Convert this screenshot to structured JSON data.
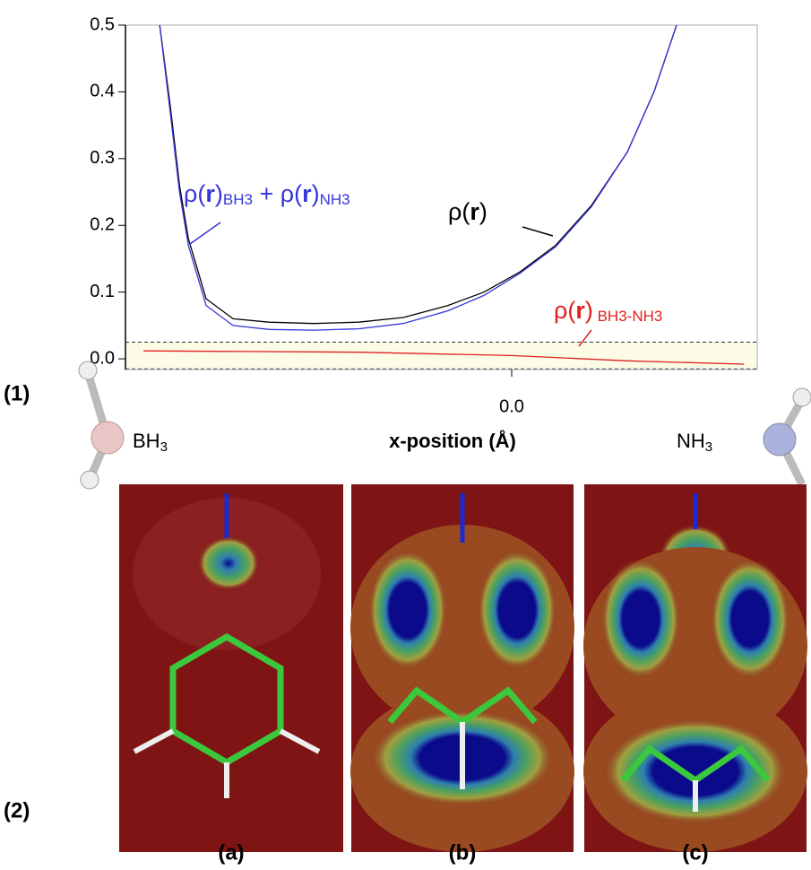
{
  "chart_data": {
    "type": "line",
    "x_label": "x-position (Å)",
    "xlim": [
      -0.958,
      0.609
    ],
    "xticks": [
      {
        "value": 0,
        "label": "0.0"
      }
    ],
    "ylim": [
      -0.016,
      0.5
    ],
    "yticks": [
      {
        "value": 0,
        "label": "0.0"
      },
      0.1,
      0.2,
      0.3,
      0.4,
      0.5
    ],
    "band": [
      -0.015,
      0.025
    ],
    "series": [
      {
        "color": "#000000",
        "x": [
          -0.873,
          -0.847,
          -0.824,
          -0.802,
          -0.758,
          -0.691,
          -0.602,
          -0.491,
          -0.38,
          -0.269,
          -0.158,
          -0.069,
          0.02,
          0.109,
          0.198,
          0.287,
          0.353,
          0.409
        ],
        "values": [
          0.5,
          0.38,
          0.26,
          0.18,
          0.09,
          0.06,
          0.055,
          0.053,
          0.055,
          0.062,
          0.08,
          0.1,
          0.13,
          0.17,
          0.23,
          0.31,
          0.4,
          0.5
        ]
      },
      {
        "color": "#3535d8",
        "x": [
          -0.873,
          -0.847,
          -0.824,
          -0.802,
          -0.758,
          -0.691,
          -0.602,
          -0.491,
          -0.38,
          -0.269,
          -0.158,
          -0.069,
          0.02,
          0.109,
          0.198,
          0.287,
          0.353,
          0.409
        ],
        "values": [
          0.5,
          0.37,
          0.25,
          0.17,
          0.08,
          0.05,
          0.044,
          0.043,
          0.045,
          0.053,
          0.072,
          0.095,
          0.128,
          0.168,
          0.228,
          0.31,
          0.4,
          0.5
        ]
      },
      {
        "color": "#e02020",
        "x": [
          -0.913,
          -0.38,
          0,
          0.287,
          0.576
        ],
        "values": [
          0.012,
          0.01,
          0.005,
          -0.003,
          -0.008
        ]
      }
    ],
    "annotations": {
      "sum": [
        "ρ(",
        "r",
        ")",
        "BH3",
        " + ρ(",
        "r",
        ")",
        "NH3"
      ],
      "total": [
        "ρ(",
        "r",
        ")"
      ],
      "diff": [
        "ρ(",
        "r",
        ")",
        " BH3-NH3"
      ]
    },
    "left_label": {
      "text": "BH",
      "sub": "3"
    },
    "right_label": {
      "text": "NH",
      "sub": "3"
    }
  },
  "figure": {
    "part1": "(1)",
    "part2": "(2)",
    "panels": [
      "(a)",
      "(b)",
      "(c)"
    ]
  }
}
